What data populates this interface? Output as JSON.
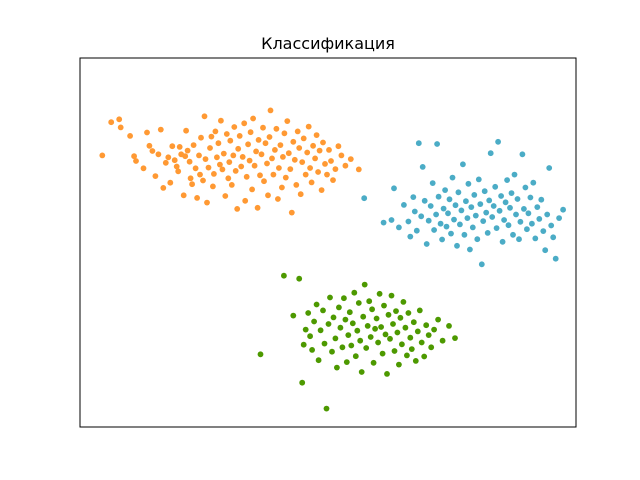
{
  "chart_data": {
    "type": "scatter",
    "title": "Классификация",
    "xlabel": "",
    "ylabel": "",
    "xlim": [
      0,
      100
    ],
    "ylim": [
      0,
      100
    ],
    "grid": false,
    "axis_ticks": false,
    "legend": false,
    "series": [
      {
        "color": "#ff9933",
        "points": [
          [
            4.5,
            73.6
          ],
          [
            6.3,
            82.6
          ],
          [
            7.9,
            83.4
          ],
          [
            8.2,
            81.2
          ],
          [
            10.1,
            78.9
          ],
          [
            10.9,
            73.4
          ],
          [
            11.3,
            72.1
          ],
          [
            12.8,
            70.1
          ],
          [
            13.5,
            79.8
          ],
          [
            14.0,
            76.2
          ],
          [
            14.6,
            74.8
          ],
          [
            15.2,
            68.0
          ],
          [
            15.8,
            73.9
          ],
          [
            16.3,
            80.6
          ],
          [
            16.8,
            64.8
          ],
          [
            17.3,
            71.6
          ],
          [
            17.8,
            73.1
          ],
          [
            18.2,
            66.2
          ],
          [
            18.6,
            76.1
          ],
          [
            19.1,
            72.3
          ],
          [
            19.5,
            70.6
          ],
          [
            19.8,
            69.3
          ],
          [
            20.1,
            75.9
          ],
          [
            20.4,
            73.9
          ],
          [
            20.9,
            62.8
          ],
          [
            21.2,
            73.4
          ],
          [
            21.4,
            80.3
          ],
          [
            21.7,
            74.9
          ],
          [
            22.1,
            71.9
          ],
          [
            22.3,
            67.4
          ],
          [
            22.6,
            65.8
          ],
          [
            22.9,
            76.4
          ],
          [
            23.3,
            70.1
          ],
          [
            23.6,
            62.1
          ],
          [
            24.0,
            73.6
          ],
          [
            24.2,
            68.4
          ],
          [
            24.4,
            78.4
          ],
          [
            24.8,
            66.8
          ],
          [
            25.1,
            84.2
          ],
          [
            25.3,
            72.6
          ],
          [
            25.6,
            60.8
          ],
          [
            25.9,
            70.3
          ],
          [
            26.2,
            75.6
          ],
          [
            26.5,
            78.7
          ],
          [
            26.8,
            65.2
          ],
          [
            27.0,
            68.6
          ],
          [
            27.3,
            80.1
          ],
          [
            27.6,
            73.1
          ],
          [
            27.9,
            76.9
          ],
          [
            28.2,
            71.1
          ],
          [
            28.4,
            83.0
          ],
          [
            28.7,
            69.8
          ],
          [
            29.0,
            74.1
          ],
          [
            29.3,
            62.6
          ],
          [
            29.6,
            79.4
          ],
          [
            29.9,
            67.4
          ],
          [
            30.1,
            71.8
          ],
          [
            30.3,
            77.6
          ],
          [
            30.6,
            65.6
          ],
          [
            30.9,
            73.6
          ],
          [
            31.1,
            81.3
          ],
          [
            31.4,
            69.4
          ],
          [
            31.7,
            59.1
          ],
          [
            31.9,
            75.4
          ],
          [
            32.2,
            78.9
          ],
          [
            32.5,
            70.6
          ],
          [
            32.8,
            73.2
          ],
          [
            33.1,
            82.3
          ],
          [
            33.3,
            61.3
          ],
          [
            33.6,
            67.8
          ],
          [
            33.9,
            76.6
          ],
          [
            34.2,
            72.2
          ],
          [
            34.4,
            79.9
          ],
          [
            34.7,
            64.4
          ],
          [
            34.9,
            83.6
          ],
          [
            35.2,
            70.8
          ],
          [
            35.5,
            74.7
          ],
          [
            35.8,
            59.4
          ],
          [
            36.0,
            77.8
          ],
          [
            36.3,
            68.2
          ],
          [
            36.6,
            73.9
          ],
          [
            36.9,
            81.1
          ],
          [
            37.1,
            66.6
          ],
          [
            37.4,
            76.9
          ],
          [
            37.7,
            71.4
          ],
          [
            37.9,
            62.8
          ],
          [
            38.2,
            78.6
          ],
          [
            38.4,
            85.8
          ],
          [
            38.7,
            72.8
          ],
          [
            39.0,
            68.4
          ],
          [
            39.3,
            75.1
          ],
          [
            39.6,
            80.8
          ],
          [
            39.9,
            61.8
          ],
          [
            40.1,
            70.2
          ],
          [
            40.4,
            76.4
          ],
          [
            40.7,
            64.9
          ],
          [
            40.9,
            73.2
          ],
          [
            41.2,
            79.6
          ],
          [
            41.5,
            67.6
          ],
          [
            41.8,
            82.9
          ],
          [
            42.1,
            74.2
          ],
          [
            42.4,
            69.9
          ],
          [
            42.7,
            58.1
          ],
          [
            43.0,
            77.3
          ],
          [
            43.3,
            72.4
          ],
          [
            43.6,
            65.6
          ],
          [
            43.9,
            80.1
          ],
          [
            44.2,
            75.6
          ],
          [
            44.5,
            63.1
          ],
          [
            44.8,
            71.8
          ],
          [
            45.1,
            78.2
          ],
          [
            45.5,
            68.4
          ],
          [
            45.8,
            74.4
          ],
          [
            46.1,
            81.4
          ],
          [
            46.4,
            70.2
          ],
          [
            46.7,
            66.3
          ],
          [
            47.0,
            76.2
          ],
          [
            47.4,
            72.8
          ],
          [
            47.7,
            79.1
          ],
          [
            48.0,
            69.1
          ],
          [
            48.3,
            74.9
          ],
          [
            48.7,
            64.2
          ],
          [
            49.0,
            77.1
          ],
          [
            49.4,
            71.3
          ],
          [
            49.8,
            68.4
          ],
          [
            50.2,
            75.1
          ],
          [
            50.6,
            72.1
          ],
          [
            51.0,
            66.9
          ],
          [
            51.5,
            69.9
          ],
          [
            52.1,
            76.1
          ],
          [
            52.7,
            73.6
          ],
          [
            53.5,
            70.8
          ],
          [
            54.6,
            72.6
          ],
          [
            56.2,
            69.8
          ]
        ]
      },
      {
        "color": "#4bacc6",
        "points": [
          [
            57.3,
            62.0
          ],
          [
            61.2,
            55.4
          ],
          [
            62.8,
            56.1
          ],
          [
            63.3,
            64.7
          ],
          [
            64.3,
            54.1
          ],
          [
            65.3,
            60.2
          ],
          [
            66.2,
            55.7
          ],
          [
            66.6,
            51.6
          ],
          [
            67.2,
            62.3
          ],
          [
            67.5,
            58.4
          ],
          [
            67.9,
            53.2
          ],
          [
            68.3,
            76.9
          ],
          [
            68.8,
            57.1
          ],
          [
            69.1,
            70.5
          ],
          [
            69.5,
            61.3
          ],
          [
            69.9,
            49.6
          ],
          [
            70.3,
            55.9
          ],
          [
            70.7,
            59.9
          ],
          [
            71.1,
            66.1
          ],
          [
            71.4,
            53.4
          ],
          [
            71.8,
            57.6
          ],
          [
            72.0,
            76.7
          ],
          [
            72.3,
            62.4
          ],
          [
            72.7,
            55.1
          ],
          [
            73.0,
            50.8
          ],
          [
            73.3,
            59.2
          ],
          [
            73.6,
            64.2
          ],
          [
            73.9,
            54.3
          ],
          [
            74.2,
            57.9
          ],
          [
            74.5,
            61.7
          ],
          [
            74.8,
            52.4
          ],
          [
            75.1,
            67.6
          ],
          [
            75.4,
            56.2
          ],
          [
            75.7,
            60.1
          ],
          [
            76.0,
            49.1
          ],
          [
            76.3,
            63.6
          ],
          [
            76.6,
            54.9
          ],
          [
            76.9,
            58.7
          ],
          [
            77.2,
            71.2
          ],
          [
            77.5,
            52.1
          ],
          [
            77.8,
            61.2
          ],
          [
            78.1,
            56.6
          ],
          [
            78.3,
            65.9
          ],
          [
            78.6,
            48.1
          ],
          [
            78.9,
            59.6
          ],
          [
            79.2,
            54.1
          ],
          [
            79.5,
            62.9
          ],
          [
            79.8,
            57.3
          ],
          [
            80.1,
            50.9
          ],
          [
            80.4,
            67.1
          ],
          [
            80.7,
            60.4
          ],
          [
            81.0,
            44.1
          ],
          [
            81.3,
            55.8
          ],
          [
            81.6,
            63.9
          ],
          [
            81.9,
            58.1
          ],
          [
            82.2,
            52.6
          ],
          [
            82.5,
            61.4
          ],
          [
            82.8,
            74.2
          ],
          [
            83.1,
            56.9
          ],
          [
            83.4,
            59.9
          ],
          [
            83.7,
            65.1
          ],
          [
            84.0,
            53.9
          ],
          [
            84.3,
            77.3
          ],
          [
            84.6,
            58.6
          ],
          [
            84.9,
            62.6
          ],
          [
            85.2,
            50.2
          ],
          [
            85.5,
            56.1
          ],
          [
            85.8,
            60.9
          ],
          [
            86.1,
            66.9
          ],
          [
            86.4,
            54.7
          ],
          [
            86.7,
            59.4
          ],
          [
            87.0,
            63.4
          ],
          [
            87.3,
            52.1
          ],
          [
            87.6,
            68.4
          ],
          [
            87.9,
            57.6
          ],
          [
            88.2,
            61.8
          ],
          [
            88.5,
            50.9
          ],
          [
            88.8,
            55.6
          ],
          [
            89.2,
            73.9
          ],
          [
            89.5,
            59.1
          ],
          [
            89.8,
            64.9
          ],
          [
            90.1,
            53.6
          ],
          [
            90.4,
            57.9
          ],
          [
            90.8,
            62.2
          ],
          [
            91.1,
            55.1
          ],
          [
            91.4,
            66.2
          ],
          [
            91.8,
            51.1
          ],
          [
            92.2,
            59.6
          ],
          [
            92.6,
            56.4
          ],
          [
            93.0,
            61.6
          ],
          [
            93.4,
            53.1
          ],
          [
            93.8,
            47.9
          ],
          [
            94.2,
            57.6
          ],
          [
            94.6,
            70.2
          ],
          [
            95.0,
            54.6
          ],
          [
            95.4,
            51.4
          ],
          [
            95.9,
            45.6
          ],
          [
            96.6,
            56.6
          ],
          [
            97.4,
            58.9
          ]
        ]
      },
      {
        "color": "#4d9900",
        "points": [
          [
            36.4,
            19.7
          ],
          [
            41.1,
            41.0
          ],
          [
            43.0,
            30.2
          ],
          [
            44.2,
            40.2
          ],
          [
            44.8,
            12.0
          ],
          [
            45.1,
            22.3
          ],
          [
            45.5,
            26.4
          ],
          [
            46.0,
            30.9
          ],
          [
            46.4,
            24.6
          ],
          [
            46.8,
            20.9
          ],
          [
            47.2,
            28.6
          ],
          [
            47.7,
            33.2
          ],
          [
            48.1,
            18.1
          ],
          [
            48.5,
            26.2
          ],
          [
            49.0,
            31.6
          ],
          [
            49.3,
            22.6
          ],
          [
            49.7,
            5.0
          ],
          [
            50.1,
            27.9
          ],
          [
            50.4,
            35.1
          ],
          [
            50.8,
            20.4
          ],
          [
            51.1,
            29.7
          ],
          [
            51.5,
            24.0
          ],
          [
            51.8,
            16.1
          ],
          [
            52.2,
            32.4
          ],
          [
            52.5,
            26.9
          ],
          [
            52.9,
            21.6
          ],
          [
            53.2,
            34.9
          ],
          [
            53.5,
            29.1
          ],
          [
            53.8,
            17.6
          ],
          [
            54.1,
            24.9
          ],
          [
            54.4,
            31.1
          ],
          [
            54.7,
            22.1
          ],
          [
            55.0,
            28.1
          ],
          [
            55.3,
            36.4
          ],
          [
            55.6,
            19.2
          ],
          [
            55.9,
            26.1
          ],
          [
            56.2,
            33.6
          ],
          [
            56.5,
            23.4
          ],
          [
            56.8,
            14.9
          ],
          [
            57.1,
            29.9
          ],
          [
            57.4,
            38.6
          ],
          [
            57.7,
            21.4
          ],
          [
            58.0,
            27.4
          ],
          [
            58.3,
            34.1
          ],
          [
            58.6,
            24.4
          ],
          [
            58.9,
            31.9
          ],
          [
            59.2,
            17.4
          ],
          [
            59.5,
            26.6
          ],
          [
            59.8,
            29.4
          ],
          [
            60.1,
            22.9
          ],
          [
            60.4,
            36.1
          ],
          [
            60.7,
            27.1
          ],
          [
            61.0,
            19.9
          ],
          [
            61.3,
            32.9
          ],
          [
            61.6,
            25.1
          ],
          [
            61.9,
            14.4
          ],
          [
            62.2,
            30.4
          ],
          [
            62.5,
            23.9
          ],
          [
            62.8,
            35.6
          ],
          [
            63.1,
            27.9
          ],
          [
            63.4,
            20.6
          ],
          [
            63.7,
            31.4
          ],
          [
            64.0,
            25.6
          ],
          [
            64.3,
            16.9
          ],
          [
            64.6,
            29.6
          ],
          [
            64.9,
            22.4
          ],
          [
            65.2,
            33.9
          ],
          [
            65.6,
            26.9
          ],
          [
            65.9,
            19.4
          ],
          [
            66.2,
            30.9
          ],
          [
            66.6,
            24.2
          ],
          [
            66.9,
            21.1
          ],
          [
            67.3,
            28.4
          ],
          [
            67.7,
            17.9
          ],
          [
            68.1,
            25.9
          ],
          [
            68.5,
            31.6
          ],
          [
            68.9,
            22.9
          ],
          [
            69.4,
            19.1
          ],
          [
            69.8,
            27.6
          ],
          [
            70.3,
            24.9
          ],
          [
            70.8,
            21.6
          ],
          [
            71.4,
            26.4
          ],
          [
            72.2,
            29.1
          ],
          [
            73.1,
            23.4
          ],
          [
            74.4,
            27.4
          ],
          [
            75.6,
            24.1
          ]
        ]
      }
    ]
  }
}
